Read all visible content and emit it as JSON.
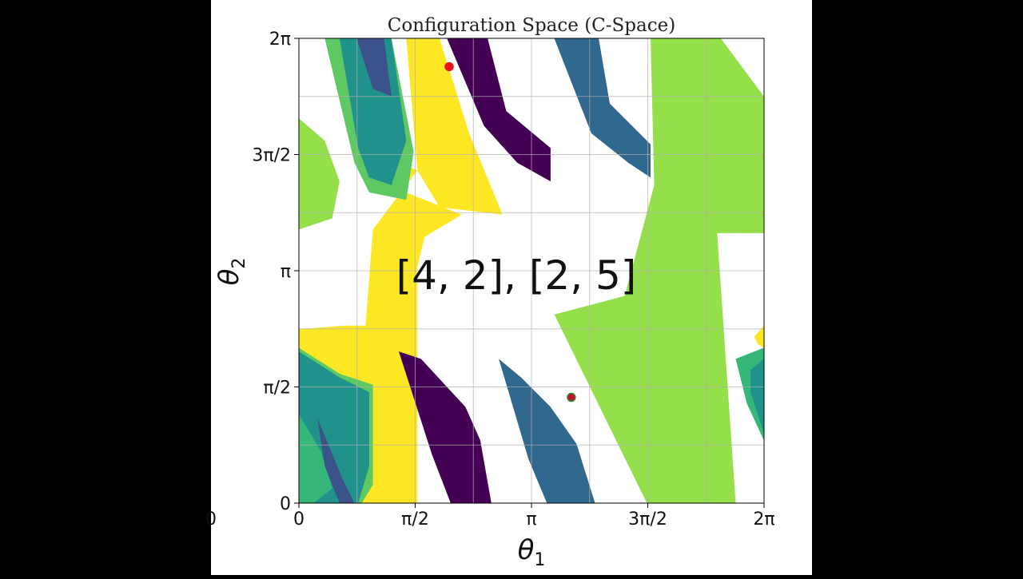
{
  "chart_data": {
    "type": "heatmap",
    "title": "Configuration Space (C-Space)",
    "xlabel": "θ1",
    "ylabel": "θ2",
    "xlim": [
      0,
      6.2832
    ],
    "ylim": [
      0,
      6.2832
    ],
    "grid": true,
    "x_ticks": [
      {
        "value": 0,
        "label": "0"
      },
      {
        "value": 1.5708,
        "label": "π/2"
      },
      {
        "value": 3.1416,
        "label": "π"
      },
      {
        "value": 4.7124,
        "label": "3π/2"
      },
      {
        "value": 6.2832,
        "label": "2π"
      }
    ],
    "y_ticks": [
      {
        "value": 0,
        "label": "0"
      },
      {
        "value": 1.5708,
        "label": "π/2"
      },
      {
        "value": 3.1416,
        "label": "π"
      },
      {
        "value": 4.7124,
        "label": "3π/2"
      },
      {
        "value": 6.2832,
        "label": "2π"
      }
    ],
    "left_edge_label": "0",
    "annotation": "[4, 2], [2, 5]",
    "points": [
      {
        "x": 2.03,
        "y": 5.9,
        "color": "#e8161b"
      },
      {
        "x": 3.68,
        "y": 1.43,
        "color": "#c8102e",
        "edge": "#2a8a2a"
      }
    ],
    "regions": [
      {
        "color": "#fde725",
        "poly": [
          [
            1.0,
            4.75
          ],
          [
            1.6,
            4.5
          ],
          [
            1.9,
            4.0
          ],
          [
            2.75,
            3.9
          ],
          [
            2.3,
            5.0
          ],
          [
            1.9,
            6.28
          ],
          [
            1.45,
            6.28
          ],
          [
            1.6,
            4.5
          ],
          [
            1.0,
            3.7
          ],
          [
            0.9,
            2.4
          ],
          [
            0.6,
            2.4
          ],
          [
            0,
            2.35
          ],
          [
            0,
            0
          ],
          [
            1.6,
            0
          ],
          [
            1.6,
            3.2
          ],
          [
            1.7,
            3.6
          ],
          [
            2.2,
            3.9
          ],
          [
            1.45,
            4.2
          ],
          [
            1.0,
            4.75
          ]
        ]
      },
      {
        "color": "#5ec962",
        "poly": [
          [
            0.35,
            6.28
          ],
          [
            1.25,
            6.28
          ],
          [
            1.55,
            4.75
          ],
          [
            1.45,
            4.1
          ],
          [
            0.95,
            4.2
          ],
          [
            0.75,
            4.6
          ],
          [
            0.35,
            6.28
          ]
        ]
      },
      {
        "color": "#21918c",
        "poly": [
          [
            0.55,
            6.28
          ],
          [
            1.25,
            6.28
          ],
          [
            1.45,
            4.9
          ],
          [
            1.25,
            4.3
          ],
          [
            0.95,
            4.4
          ],
          [
            0.8,
            4.8
          ],
          [
            0.55,
            6.28
          ]
        ]
      },
      {
        "color": "#3b528b",
        "poly": [
          [
            0.78,
            6.28
          ],
          [
            1.15,
            6.28
          ],
          [
            1.25,
            5.5
          ],
          [
            1.0,
            5.6
          ],
          [
            0.78,
            6.28
          ]
        ]
      },
      {
        "color": "#440154",
        "poly": [
          [
            2.0,
            6.28
          ],
          [
            2.55,
            6.28
          ],
          [
            2.8,
            5.3
          ],
          [
            3.4,
            4.8
          ],
          [
            3.4,
            4.35
          ],
          [
            2.95,
            4.6
          ],
          [
            2.5,
            5.1
          ],
          [
            2.0,
            6.28
          ]
        ]
      },
      {
        "color": "#31688e",
        "poly": [
          [
            3.45,
            6.28
          ],
          [
            4.05,
            6.28
          ],
          [
            4.2,
            5.4
          ],
          [
            4.75,
            4.85
          ],
          [
            4.75,
            4.4
          ],
          [
            4.45,
            4.6
          ],
          [
            3.95,
            5.0
          ],
          [
            3.45,
            6.28
          ]
        ]
      },
      {
        "color": "#95e04a",
        "poly": [
          [
            4.75,
            6.28
          ],
          [
            5.7,
            6.28
          ],
          [
            6.28,
            5.5
          ],
          [
            6.28,
            3.65
          ],
          [
            5.65,
            3.65
          ],
          [
            5.9,
            0
          ],
          [
            4.7,
            0
          ],
          [
            3.45,
            2.55
          ],
          [
            4.4,
            2.8
          ],
          [
            4.8,
            4.3
          ],
          [
            4.75,
            6.28
          ]
        ]
      },
      {
        "color": "#95e04a",
        "poly": [
          [
            0,
            5.2
          ],
          [
            0.35,
            4.9
          ],
          [
            0.55,
            4.35
          ],
          [
            0.45,
            3.85
          ],
          [
            0,
            3.7
          ]
        ]
      },
      {
        "color": "#fde725",
        "poly": [
          [
            6.15,
            2.25
          ],
          [
            6.28,
            2.4
          ],
          [
            6.28,
            2.1
          ],
          [
            6.2,
            2.15
          ]
        ]
      },
      {
        "color": "#5ec962",
        "poly": [
          [
            0,
            2.1
          ],
          [
            0.55,
            1.75
          ],
          [
            1.0,
            1.6
          ],
          [
            1.0,
            0.25
          ],
          [
            0.85,
            0
          ],
          [
            0,
            0
          ]
        ]
      },
      {
        "color": "#21918c",
        "poly": [
          [
            0,
            2.05
          ],
          [
            0.55,
            1.7
          ],
          [
            0.95,
            1.5
          ],
          [
            0.95,
            0.5
          ],
          [
            0.8,
            0
          ],
          [
            0.2,
            0
          ],
          [
            0,
            0.4
          ]
        ]
      },
      {
        "color": "#35b779",
        "poly": [
          [
            0,
            1.2
          ],
          [
            0.3,
            0.7
          ],
          [
            0.45,
            0.2
          ],
          [
            0.2,
            0
          ],
          [
            0,
            0
          ]
        ]
      },
      {
        "color": "#3b528b",
        "poly": [
          [
            0.25,
            1.15
          ],
          [
            0.6,
            0.3
          ],
          [
            0.75,
            0
          ],
          [
            0.55,
            0
          ],
          [
            0.35,
            0.5
          ],
          [
            0.25,
            1.15
          ]
        ]
      },
      {
        "color": "#440154",
        "poly": [
          [
            1.35,
            2.05
          ],
          [
            1.65,
            1.95
          ],
          [
            2.25,
            1.3
          ],
          [
            2.45,
            0.85
          ],
          [
            2.6,
            0
          ],
          [
            2.05,
            0
          ],
          [
            1.8,
            0.65
          ],
          [
            1.35,
            2.05
          ]
        ]
      },
      {
        "color": "#31688e",
        "poly": [
          [
            2.7,
            1.95
          ],
          [
            3.0,
            1.7
          ],
          [
            3.4,
            1.3
          ],
          [
            3.75,
            0.8
          ],
          [
            4.0,
            0
          ],
          [
            3.35,
            0
          ],
          [
            3.1,
            0.6
          ],
          [
            2.7,
            1.95
          ]
        ]
      },
      {
        "color": "#35b779",
        "poly": [
          [
            5.9,
            1.95
          ],
          [
            6.28,
            2.1
          ],
          [
            6.28,
            0.85
          ],
          [
            6.05,
            1.35
          ],
          [
            5.9,
            1.95
          ]
        ]
      },
      {
        "color": "#21918c",
        "poly": [
          [
            6.1,
            1.8
          ],
          [
            6.28,
            1.95
          ],
          [
            6.28,
            0.95
          ],
          [
            6.1,
            1.5
          ]
        ]
      }
    ]
  }
}
